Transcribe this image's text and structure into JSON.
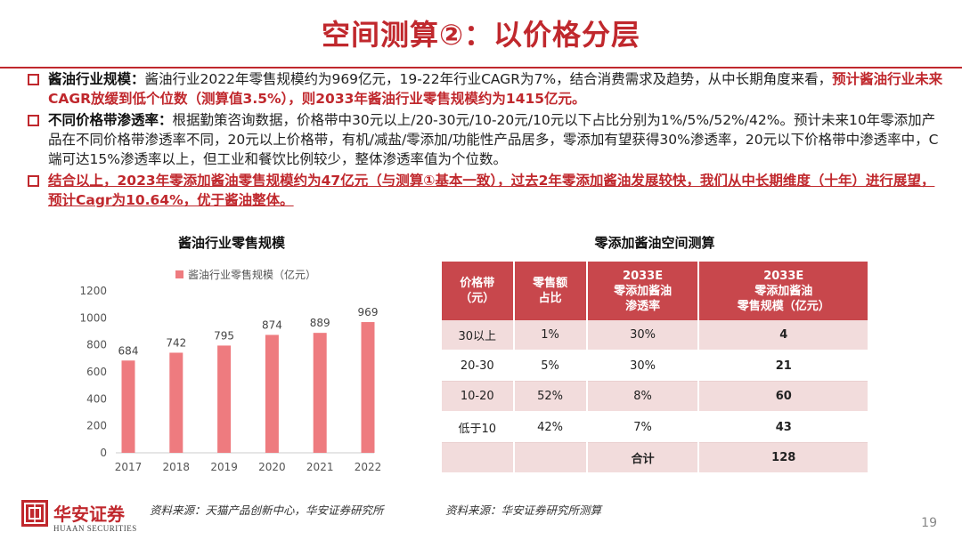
{
  "header": {
    "title": "空间测算②：以价格分层"
  },
  "bullets": [
    {
      "lead": "酱油行业规模：",
      "text": "酱油行业2022年零售规模约为969亿元，19-22年行业CAGR为7%，结合消费需求及趋势，从中长期角度来看，",
      "highlight": "预计酱油行业未来CAGR放缓到低个位数（测算值3.5%），则2033年酱油行业零售规模约为1415亿元。"
    },
    {
      "lead": "不同价格带渗透率：",
      "text": "根据勤策咨询数据，价格带中30元以上/20-30元/10-20元/10元以下占比分别为1%/5%/52%/42%。预计未来10年零添加产品在不同价格带渗透率不同，20元以上价格带，有机/减盐/零添加/功能性产品居多，零添加有望获得30%渗透率，20元以下价格带中渗透率中，C端可达15%渗透率以上，但工业和餐饮比例较少，整体渗透率值为个位数。"
    },
    {
      "text": "结合以上，2023年零添加酱油零售规模约为47亿元（与测算①基本一致），过去2年零添加酱油发展较快，我们从中长期维度（十年）进行展望，预计Cagr为10.64%，优于酱油整体。"
    }
  ],
  "chart_data": {
    "type": "bar",
    "title": "酱油行业零售规模",
    "legend": "酱油行业零售规模（亿元）",
    "categories": [
      "2017",
      "2018",
      "2019",
      "2020",
      "2021",
      "2022"
    ],
    "values": [
      684,
      742,
      795,
      874,
      889,
      969
    ],
    "yticks": [
      "0",
      "200",
      "400",
      "600",
      "800",
      "1000",
      "1200"
    ],
    "ylim": [
      0,
      1200
    ],
    "bar_color": "#ee7b7f"
  },
  "table": {
    "title": "零添加酱油空间测算",
    "headers": [
      "价格带\n（元）",
      "零售额\n占比",
      "2033E\n零添加酱油\n渗透率",
      "2033E\n零添加酱油\n零售规模（亿元）"
    ],
    "rows": [
      [
        "30以上",
        "1%",
        "30%",
        "4"
      ],
      [
        "20-30",
        "5%",
        "30%",
        "21"
      ],
      [
        "10-20",
        "52%",
        "8%",
        "60"
      ],
      [
        "低于10",
        "42%",
        "7%",
        "43"
      ]
    ],
    "total": {
      "label": "合计",
      "value": "128"
    }
  },
  "footer": {
    "source_left": "资料来源：天猫产品创新中心，华安证券研究所",
    "source_right": "资料来源：华安证券研究所测算",
    "logo_name": "华安证券",
    "logo_en": "HUAAN SECURITIES",
    "page": "19"
  },
  "colors": {
    "accent": "#c0282d",
    "header_fill": "#c8474c",
    "row_fill": "#f2dcdc"
  }
}
